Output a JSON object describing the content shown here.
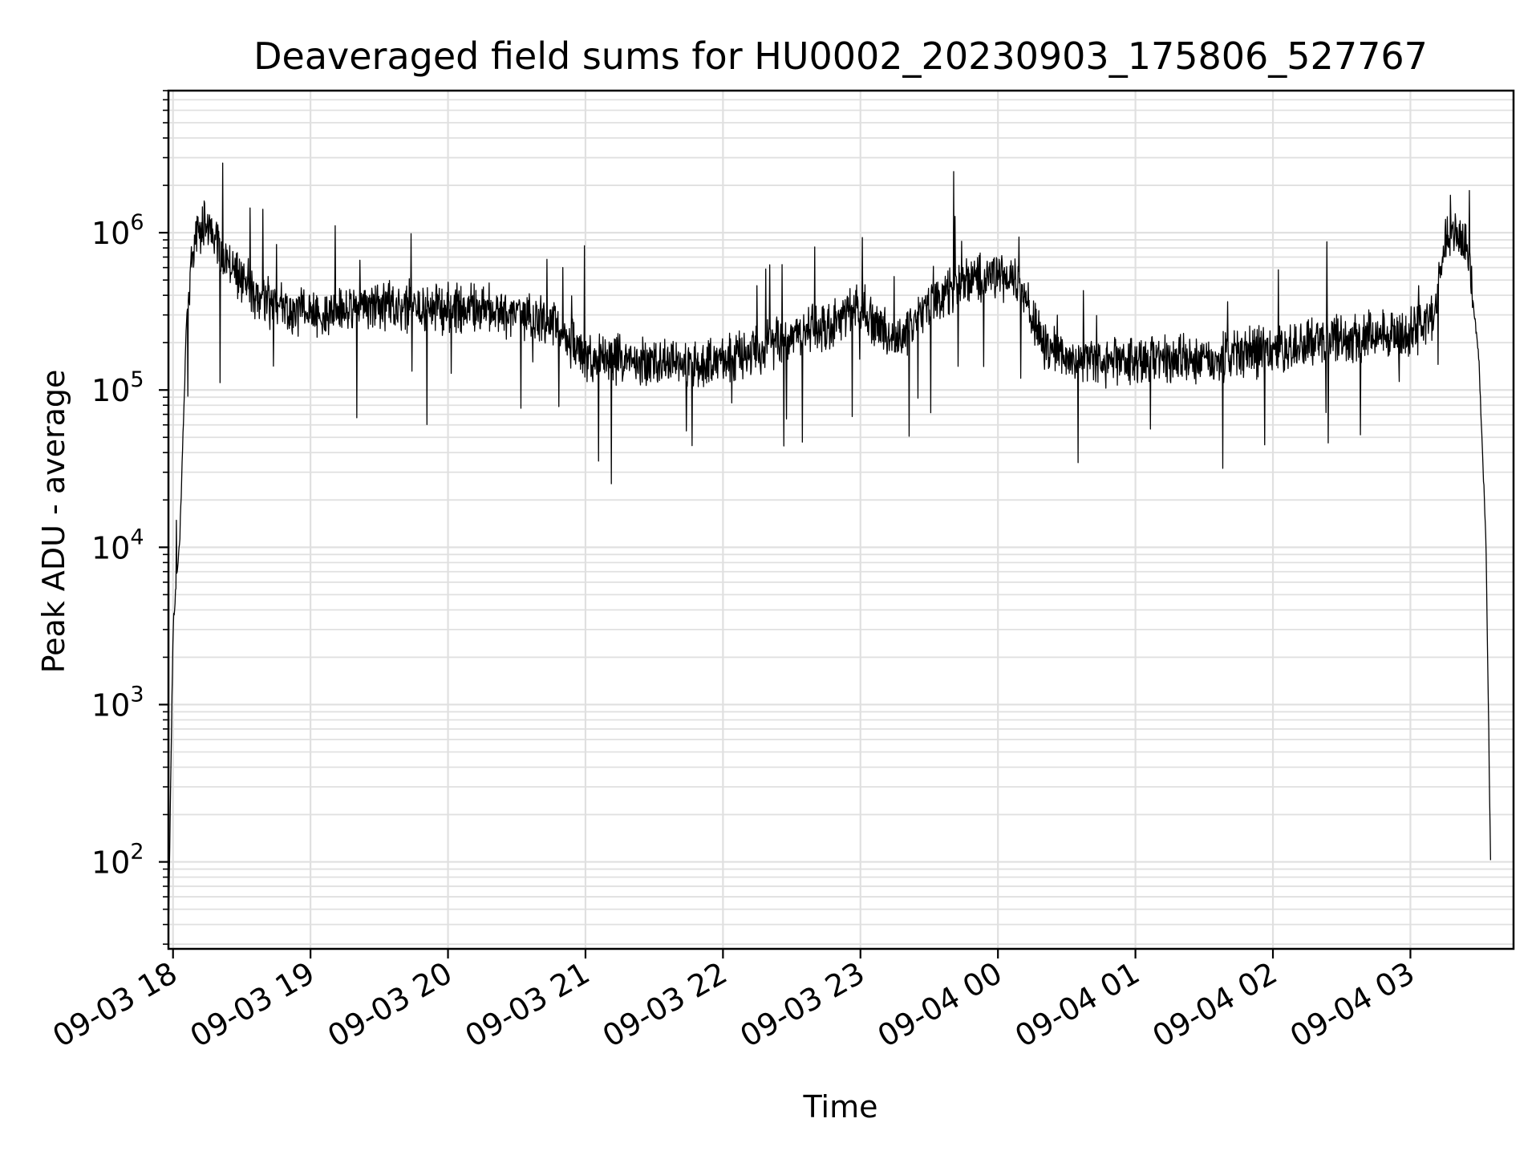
{
  "chart_data": {
    "type": "line",
    "title": "Deaveraged field sums for HU0002_20230903_175806_527767",
    "xlabel": "Time",
    "ylabel": "Peak ADU - average",
    "yscale": "log",
    "ylim": [
      28,
      8000000
    ],
    "xlim": [
      "2023-09-03 17:58",
      "2023-09-04 03:45"
    ],
    "grid": true,
    "line_color": "#000000",
    "grid_color": "#e0e0e0",
    "y_ticks": [
      {
        "value": 100,
        "base": "10",
        "exp": "2"
      },
      {
        "value": 1000,
        "base": "10",
        "exp": "3"
      },
      {
        "value": 10000,
        "base": "10",
        "exp": "4"
      },
      {
        "value": 100000,
        "base": "10",
        "exp": "5"
      },
      {
        "value": 1000000,
        "base": "10",
        "exp": "6"
      }
    ],
    "x_ticks": [
      {
        "t": "2023-09-03 18:00",
        "label": "09-03 18"
      },
      {
        "t": "2023-09-03 19:00",
        "label": "09-03 19"
      },
      {
        "t": "2023-09-03 20:00",
        "label": "09-03 20"
      },
      {
        "t": "2023-09-03 21:00",
        "label": "09-03 21"
      },
      {
        "t": "2023-09-03 22:00",
        "label": "09-03 22"
      },
      {
        "t": "2023-09-03 23:00",
        "label": "09-03 23"
      },
      {
        "t": "2023-09-04 00:00",
        "label": "09-04 00"
      },
      {
        "t": "2023-09-04 01:00",
        "label": "09-04 01"
      },
      {
        "t": "2023-09-04 02:00",
        "label": "09-04 02"
      },
      {
        "t": "2023-09-04 03:00",
        "label": "09-04 03"
      }
    ],
    "series": [
      {
        "x": [
          "2023-09-03 17:58",
          "2023-09-03 18:00",
          "2023-09-03 18:03",
          "2023-09-03 18:06",
          "2023-09-03 18:10",
          "2023-09-03 18:15",
          "2023-09-03 18:20",
          "2023-09-03 18:30",
          "2023-09-03 18:45",
          "2023-09-03 19:00",
          "2023-09-03 19:15",
          "2023-09-03 19:30",
          "2023-09-03 19:45",
          "2023-09-03 20:00",
          "2023-09-03 20:15",
          "2023-09-03 20:30",
          "2023-09-03 20:45",
          "2023-09-03 21:00",
          "2023-09-03 21:15",
          "2023-09-03 21:30",
          "2023-09-03 21:45",
          "2023-09-03 22:00",
          "2023-09-03 22:15",
          "2023-09-03 22:30",
          "2023-09-03 22:45",
          "2023-09-03 23:00",
          "2023-09-03 23:15",
          "2023-09-03 23:30",
          "2023-09-03 23:45",
          "2023-09-04 00:00",
          "2023-09-04 00:10",
          "2023-09-04 00:20",
          "2023-09-04 00:30",
          "2023-09-04 00:45",
          "2023-09-04 01:00",
          "2023-09-04 01:15",
          "2023-09-04 01:30",
          "2023-09-04 01:45",
          "2023-09-04 02:00",
          "2023-09-04 02:15",
          "2023-09-04 02:30",
          "2023-09-04 02:45",
          "2023-09-04 03:00",
          "2023-09-04 03:10",
          "2023-09-04 03:15",
          "2023-09-04 03:20",
          "2023-09-04 03:25",
          "2023-09-04 03:30",
          "2023-09-04 03:33",
          "2023-09-04 03:35"
        ],
        "y": [
          35,
          3000,
          12000,
          300000,
          1000000,
          1200000,
          800000,
          500000,
          330000,
          300000,
          330000,
          340000,
          340000,
          330000,
          330000,
          300000,
          270000,
          160000,
          160000,
          150000,
          140000,
          150000,
          180000,
          220000,
          250000,
          350000,
          200000,
          350000,
          500000,
          550000,
          450000,
          200000,
          160000,
          150000,
          150000,
          160000,
          160000,
          170000,
          180000,
          200000,
          210000,
          220000,
          230000,
          280000,
          900000,
          1000000,
          800000,
          150000,
          10000,
          100
        ]
      }
    ]
  }
}
